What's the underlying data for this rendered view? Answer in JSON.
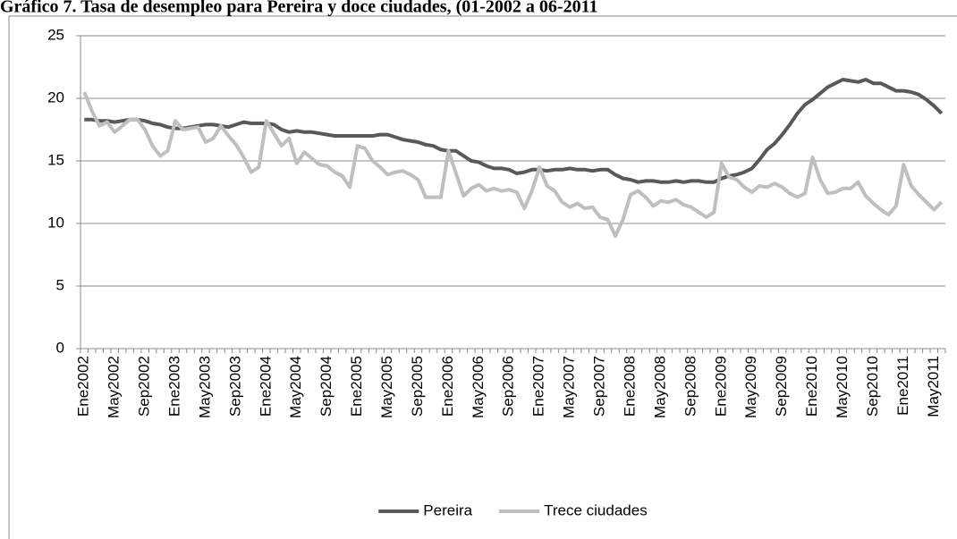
{
  "chart_data": {
    "type": "line",
    "title": "Gráfico 7. Tasa de desempleo para Pereira y doce ciudades, (01-2002 a 06-2011",
    "categories": [
      "Ene2002",
      null,
      null,
      null,
      "May2002",
      null,
      null,
      null,
      "Sep2002",
      null,
      null,
      null,
      "Ene2003",
      null,
      null,
      null,
      "May2003",
      null,
      null,
      null,
      "Sep2003",
      null,
      null,
      null,
      "Ene2004",
      null,
      null,
      null,
      "May2004",
      null,
      null,
      null,
      "Sep2004",
      null,
      null,
      null,
      "Ene2005",
      null,
      null,
      null,
      "May2005",
      null,
      null,
      null,
      "Sep2005",
      null,
      null,
      null,
      "Ene2006",
      null,
      null,
      null,
      "May2006",
      null,
      null,
      null,
      "Sep2006",
      null,
      null,
      null,
      "Ene2007",
      null,
      null,
      null,
      "May2007",
      null,
      null,
      null,
      "Sep2007",
      null,
      null,
      null,
      "Ene2008",
      null,
      null,
      null,
      "May2008",
      null,
      null,
      null,
      "Sep2008",
      null,
      null,
      null,
      "Ene2009",
      null,
      null,
      null,
      "May2009",
      null,
      null,
      null,
      "Sep2009",
      null,
      null,
      null,
      "Ene2010",
      null,
      null,
      null,
      "May2010",
      null,
      null,
      null,
      "Sep2010",
      null,
      null,
      null,
      "Ene2011",
      null,
      null,
      null,
      "May2011",
      null
    ],
    "series": [
      {
        "name": "Pereira",
        "color": "#595959",
        "values": [
          18.3,
          18.3,
          18.2,
          18.2,
          18.1,
          18.2,
          18.3,
          18.3,
          18.2,
          18.0,
          17.9,
          17.7,
          17.6,
          17.6,
          17.7,
          17.8,
          17.9,
          17.9,
          17.8,
          17.7,
          17.9,
          18.1,
          18.0,
          18.0,
          18.0,
          17.9,
          17.5,
          17.3,
          17.4,
          17.3,
          17.3,
          17.2,
          17.1,
          17.0,
          17.0,
          17.0,
          17.0,
          17.0,
          17.0,
          17.1,
          17.1,
          16.9,
          16.7,
          16.6,
          16.5,
          16.3,
          16.2,
          15.9,
          15.8,
          15.8,
          15.4,
          15.0,
          14.9,
          14.6,
          14.4,
          14.4,
          14.3,
          14.0,
          14.1,
          14.3,
          14.3,
          14.2,
          14.3,
          14.3,
          14.4,
          14.3,
          14.3,
          14.2,
          14.3,
          14.3,
          13.9,
          13.6,
          13.5,
          13.3,
          13.4,
          13.4,
          13.3,
          13.3,
          13.4,
          13.3,
          13.4,
          13.4,
          13.3,
          13.3,
          13.6,
          13.8,
          13.9,
          14.1,
          14.4,
          15.1,
          15.9,
          16.4,
          17.1,
          17.9,
          18.8,
          19.5,
          19.9,
          20.4,
          20.9,
          21.2,
          21.5,
          21.4,
          21.3,
          21.5,
          21.2,
          21.2,
          20.9,
          20.6,
          20.6,
          20.5,
          20.3,
          19.9,
          19.4,
          18.8
        ]
      },
      {
        "name": "Trece ciudades",
        "color": "#bfbfbf",
        "values": [
          20.5,
          19.0,
          17.8,
          18.1,
          17.3,
          17.8,
          18.3,
          18.3,
          17.5,
          16.2,
          15.4,
          15.8,
          18.2,
          17.5,
          17.6,
          17.7,
          16.5,
          16.8,
          17.8,
          17.0,
          16.3,
          15.3,
          14.1,
          14.5,
          18.2,
          17.2,
          16.2,
          16.8,
          14.8,
          15.7,
          15.2,
          14.7,
          14.6,
          14.1,
          13.8,
          12.9,
          16.2,
          16.0,
          15.0,
          14.5,
          13.9,
          14.1,
          14.2,
          13.9,
          13.5,
          12.1,
          12.1,
          12.1,
          15.8,
          14.0,
          12.2,
          12.8,
          13.1,
          12.6,
          12.8,
          12.6,
          12.7,
          12.5,
          11.2,
          12.6,
          14.5,
          13.0,
          12.6,
          11.7,
          11.3,
          11.6,
          11.2,
          11.3,
          10.5,
          10.3,
          9.0,
          10.3,
          12.3,
          12.6,
          12.1,
          11.4,
          11.8,
          11.7,
          11.9,
          11.5,
          11.3,
          10.9,
          10.5,
          10.9,
          14.8,
          13.7,
          13.5,
          12.9,
          12.5,
          13.0,
          12.9,
          13.2,
          12.9,
          12.4,
          12.1,
          12.4,
          15.3,
          13.5,
          12.4,
          12.5,
          12.8,
          12.8,
          13.3,
          12.2,
          11.6,
          11.1,
          10.7,
          11.4,
          14.7,
          13.0,
          12.3,
          11.7,
          11.1,
          11.7
        ]
      }
    ],
    "ylim": [
      0,
      25
    ],
    "yticks": [
      0,
      5,
      10,
      15,
      20,
      25
    ],
    "grid": true,
    "legend": "bottom"
  }
}
